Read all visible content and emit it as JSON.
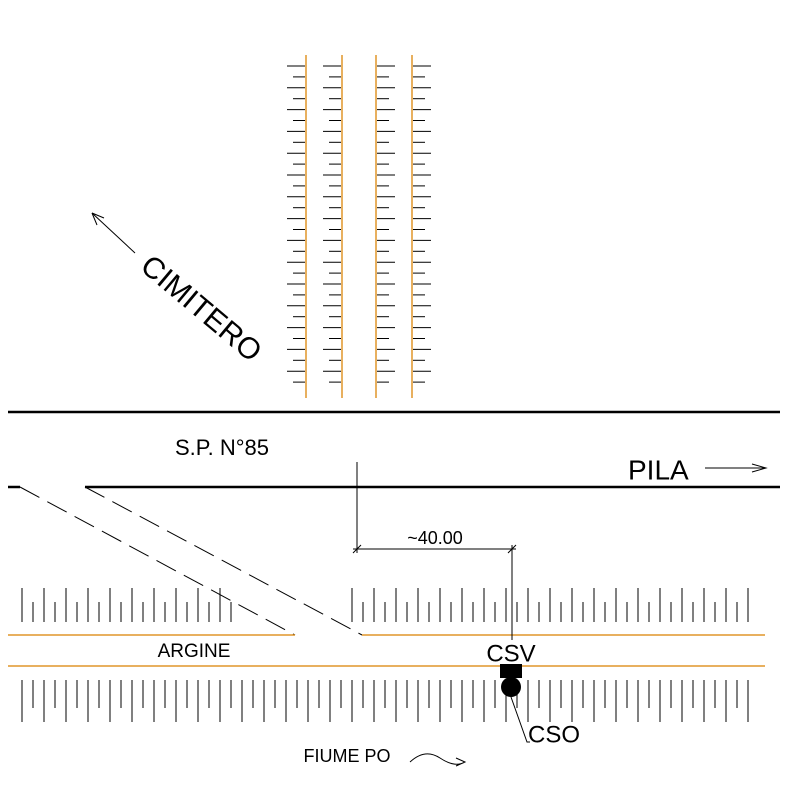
{
  "direction_labels": [
    "CIMITERO",
    "PILA"
  ],
  "road_label": "S.P. N°85",
  "dimension_label": "~40.00",
  "embankment_label": "ARGINE",
  "structures": [
    "CSV",
    "CSO"
  ],
  "river_label": "FIUME PO"
}
